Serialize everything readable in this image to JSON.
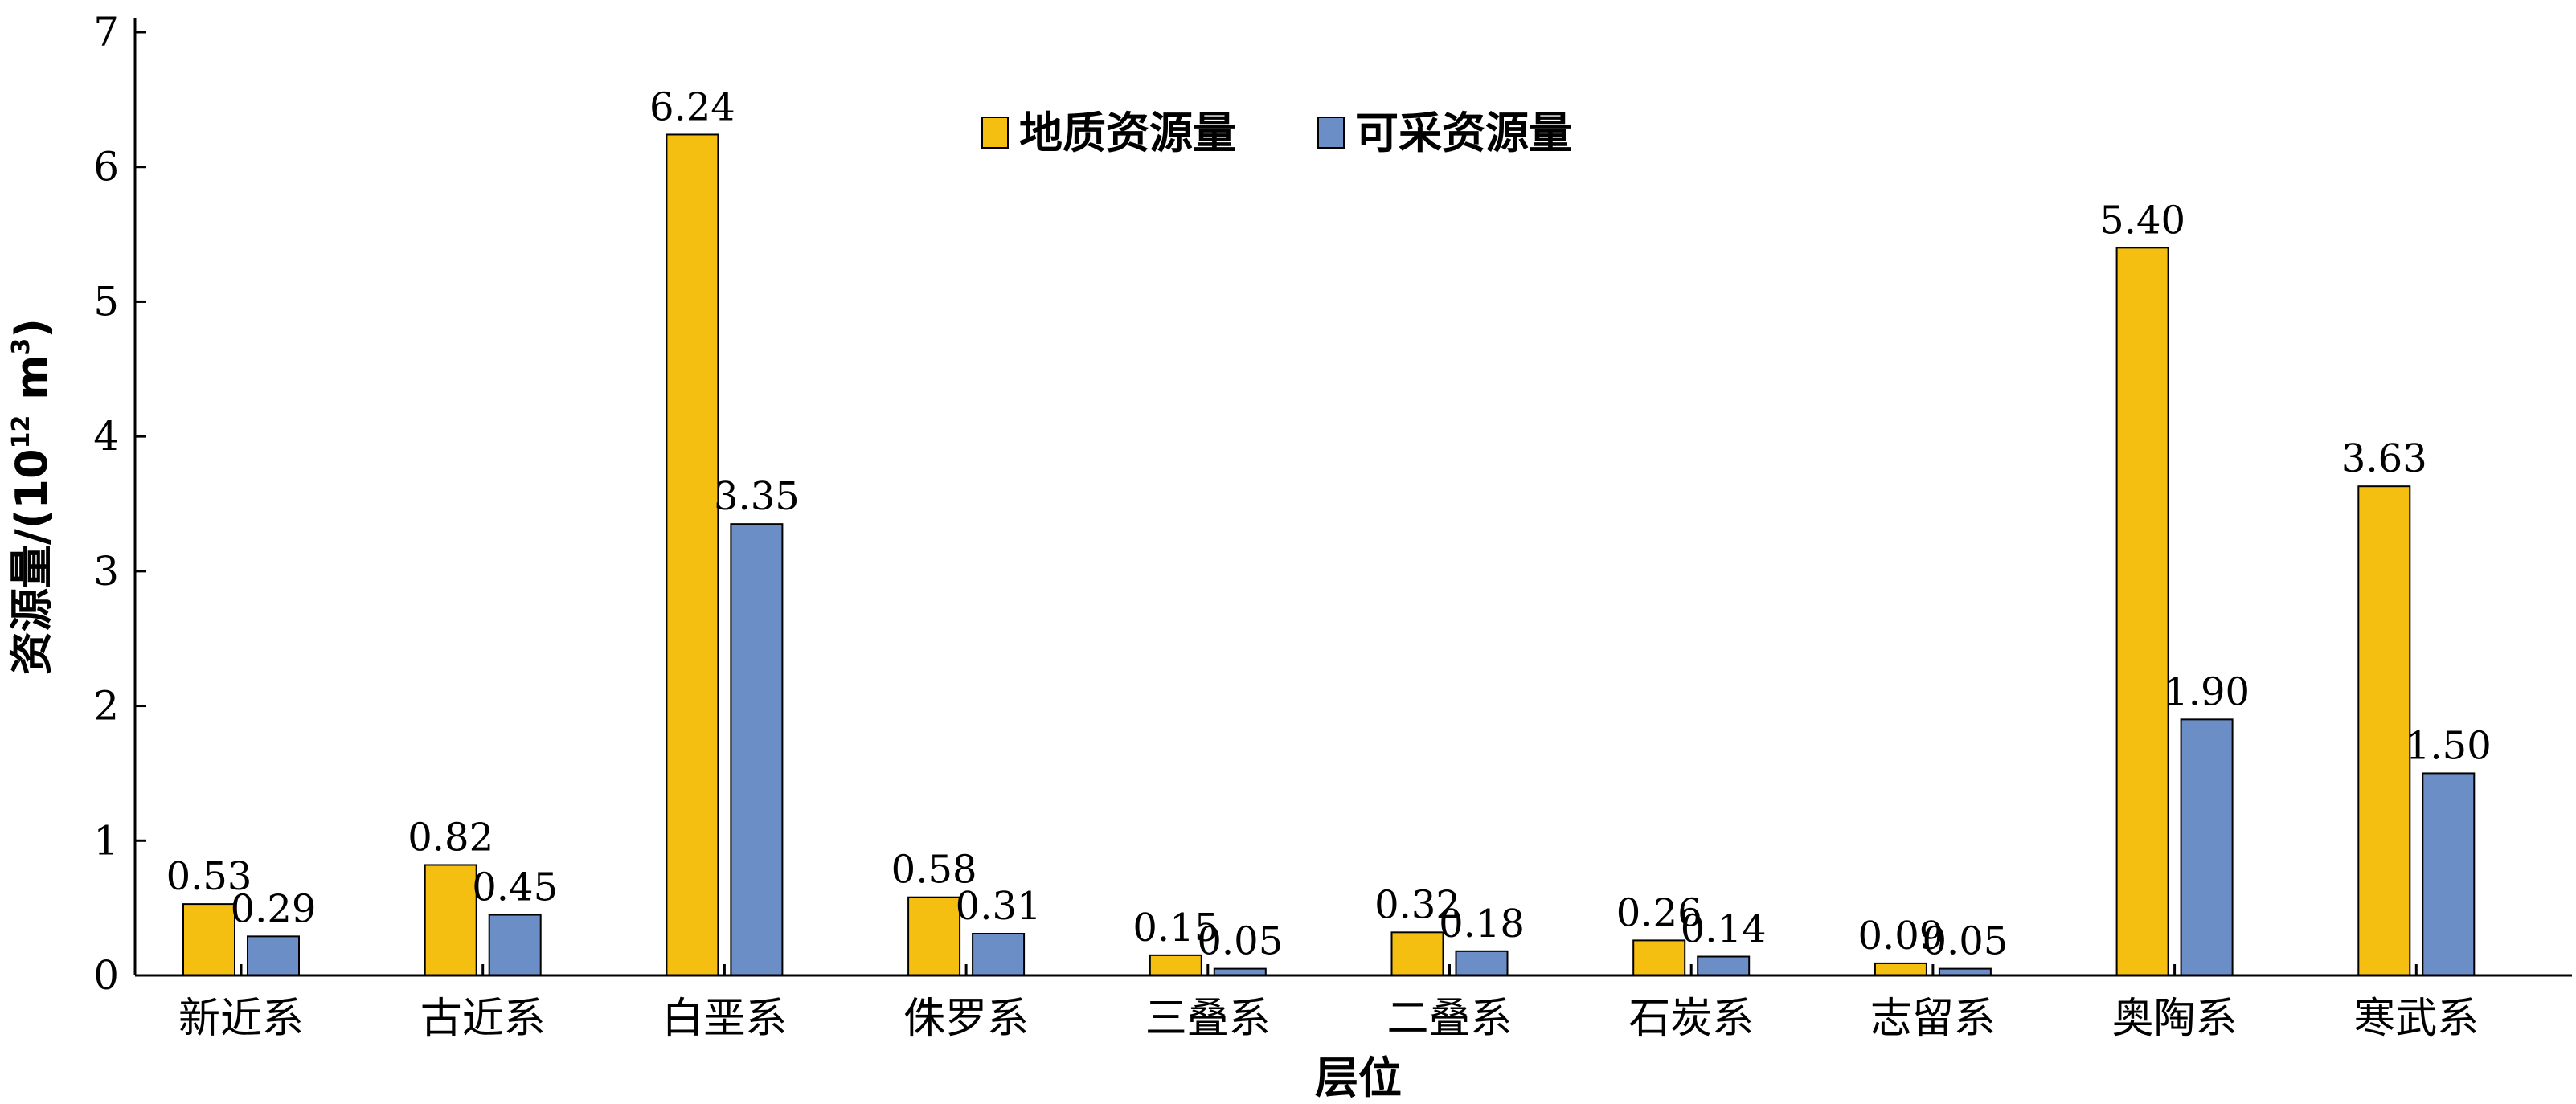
{
  "chart_data": {
    "type": "bar",
    "categories": [
      "新近系",
      "古近系",
      "白垩系",
      "侏罗系",
      "三叠系",
      "二叠系",
      "石炭系",
      "志留系",
      "奥陶系",
      "寒武系"
    ],
    "series": [
      {
        "name": "地质资源量",
        "color": "#F5BF12",
        "values": [
          0.53,
          0.82,
          6.24,
          0.58,
          0.15,
          0.32,
          0.26,
          0.09,
          5.4,
          3.63
        ],
        "labels": [
          "0.53",
          "0.82",
          "6.24",
          "0.58",
          "0.15",
          "0.32",
          "0.26",
          "0.09",
          "5.40",
          "3.63"
        ]
      },
      {
        "name": "可采资源量",
        "color": "#6B8EC7",
        "values": [
          0.29,
          0.45,
          3.35,
          0.31,
          0.05,
          0.18,
          0.14,
          0.05,
          1.9,
          1.5
        ],
        "labels": [
          "0.29",
          "0.45",
          "3.35",
          "0.31",
          "0.05",
          "0.18",
          "0.14",
          "0.05",
          "1.90",
          "1.50"
        ]
      }
    ],
    "xlabel": "层位",
    "ylabel_main": "资源量/(10",
    "ylabel_exp1": "12",
    "ylabel_mid": " m",
    "ylabel_exp2": "3",
    "ylabel_end": ")",
    "ylim": [
      0,
      7
    ],
    "yticks": [
      "0",
      "1",
      "2",
      "3",
      "4",
      "5",
      "6",
      "7"
    ],
    "legend_position": "top-center",
    "grid": false
  }
}
